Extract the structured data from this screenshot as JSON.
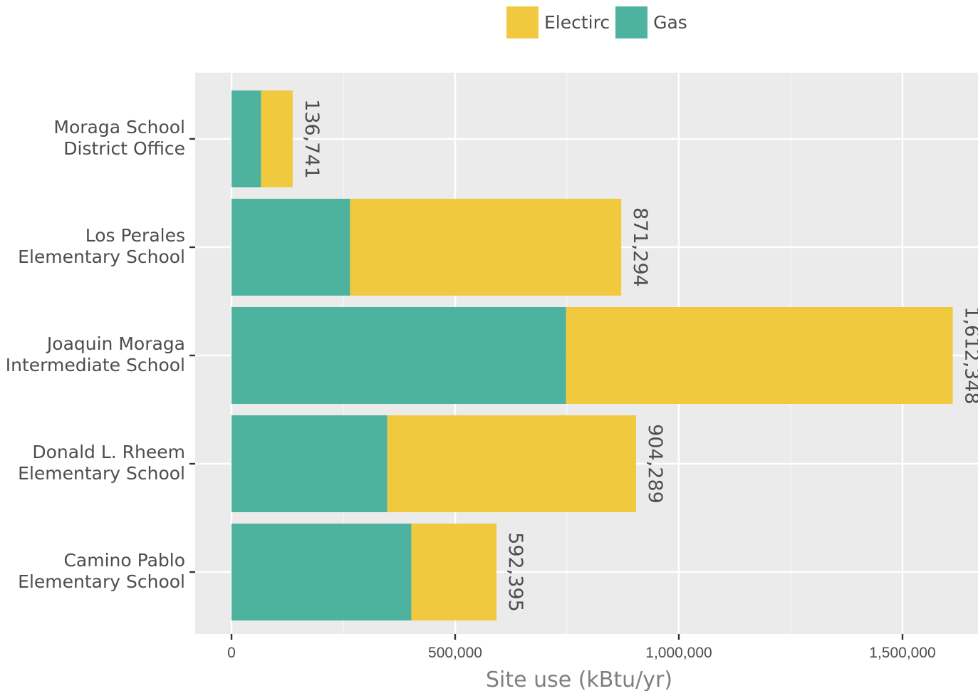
{
  "chart_data": {
    "type": "bar",
    "orientation": "horizontal",
    "stacked": true,
    "xlabel": "Site use (kBtu/yr)",
    "xlim": [
      -160000,
      3180000
    ],
    "xlim_note": "",
    "x_ticks": [
      0,
      500000,
      1000000,
      1500000
    ],
    "x_tick_labels": [
      "0",
      "500,000",
      "1,000,000",
      "1,500,000"
    ],
    "categories": [
      [
        "Moraga School",
        "District Office"
      ],
      [
        "Los Perales",
        "Elementary School"
      ],
      [
        "Joaquin Moraga",
        "Intermediate School"
      ],
      [
        "Donald L. Rheem",
        "Elementary School"
      ],
      [
        "Camino Pablo",
        "Elementary School"
      ]
    ],
    "series": [
      {
        "name": "Gas",
        "color": "#4db39e",
        "values": [
          66000,
          265000,
          748000,
          348000,
          402000
        ]
      },
      {
        "name": "Electirc",
        "color": "#f0c93f",
        "values": [
          70741,
          606294,
          864348,
          556289,
          190395
        ]
      }
    ],
    "totals": [
      136741,
      871294,
      1612348,
      904289,
      592395
    ],
    "total_labels": [
      "136,741",
      "871,294",
      "1,612,348",
      "904,289",
      "592,395"
    ],
    "legend": [
      {
        "name": "Electirc",
        "color": "#f0c93f"
      },
      {
        "name": "Gas",
        "color": "#4db39e"
      }
    ],
    "legend_position": "top",
    "grid": true,
    "panel_background": "#ebebeb"
  }
}
